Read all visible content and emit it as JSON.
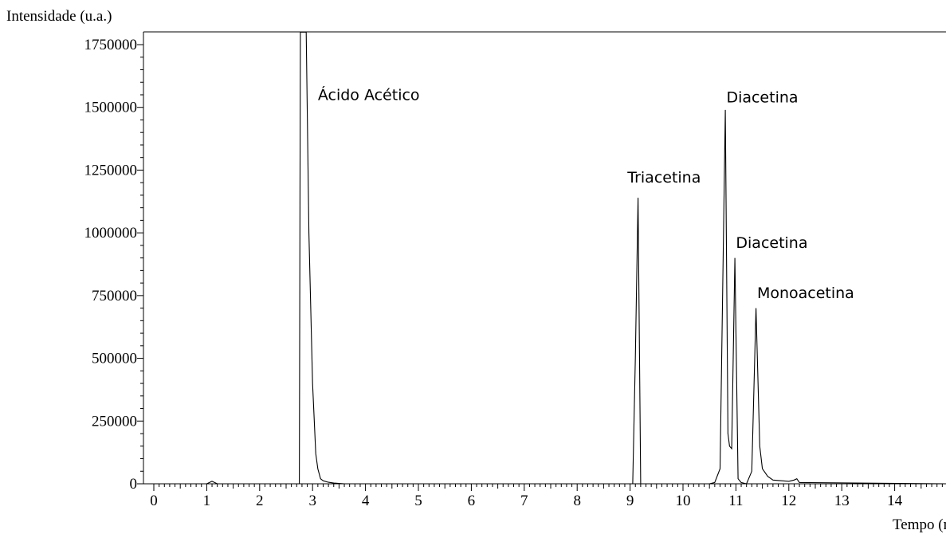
{
  "chart_data": {
    "type": "line",
    "title": "",
    "ylabel": "Intensidade (u.a.)",
    "xlabel": "Tempo (min)",
    "xlim": [
      0,
      15
    ],
    "ylim": [
      0,
      1800000
    ],
    "grid": false,
    "legend": "none",
    "x_ticks": [
      0,
      1,
      2,
      3,
      4,
      5,
      6,
      7,
      8,
      9,
      10,
      11,
      12,
      13,
      14
    ],
    "x_tick_labels": [
      "0",
      "1",
      "2",
      "3",
      "4",
      "5",
      "6",
      "7",
      "8",
      "9",
      "10",
      "11",
      "12",
      "13",
      "14"
    ],
    "y_ticks": [
      0,
      250000,
      500000,
      750000,
      1000000,
      1250000,
      1500000,
      1750000
    ],
    "y_tick_labels": [
      "0",
      "250000",
      "500000",
      "750000",
      "1000000",
      "1250000",
      "1500000",
      "1750000"
    ],
    "series": [
      {
        "x": [
          0,
          1.0,
          1.1,
          1.2,
          2.7,
          2.75,
          2.77,
          2.82,
          2.88,
          2.93,
          3.0,
          3.06,
          3.1,
          3.15,
          3.2,
          3.3,
          3.4,
          3.6,
          9.05,
          9.1,
          9.15,
          9.2,
          9.25,
          10.5,
          10.6,
          10.7,
          10.8,
          10.85,
          10.88,
          10.92,
          10.98,
          11.04,
          11.1,
          11.2,
          11.3,
          11.38,
          11.45,
          11.5,
          11.6,
          11.7,
          12.0,
          12.1,
          12.15,
          12.2,
          15.0
        ],
        "y": [
          0,
          0,
          10000,
          0,
          0,
          0,
          1800000,
          1800000,
          1800000,
          1000000,
          400000,
          120000,
          60000,
          20000,
          12000,
          6000,
          3000,
          0,
          0,
          500000,
          1140000,
          0,
          0,
          0,
          5000,
          60000,
          1490000,
          200000,
          150000,
          140000,
          900000,
          20000,
          5000,
          0,
          50000,
          700000,
          150000,
          60000,
          30000,
          15000,
          10000,
          15000,
          20000,
          5000,
          0
        ]
      }
    ],
    "annotations": [
      {
        "text": "Ácido Acético",
        "x": 3.1,
        "y": 1530000
      },
      {
        "text": "Triacetina",
        "x": 8.95,
        "y": 1200000
      },
      {
        "text": "Diacetina",
        "x": 10.82,
        "y": 1520000
      },
      {
        "text": "Diacetina",
        "x": 11.0,
        "y": 940000
      },
      {
        "text": "Monoacetina",
        "x": 11.4,
        "y": 740000
      }
    ]
  }
}
